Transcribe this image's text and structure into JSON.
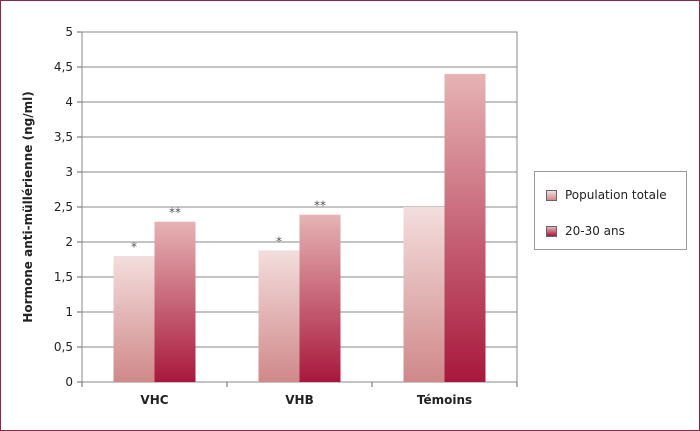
{
  "chart_data": {
    "type": "bar",
    "categories": [
      "VHC",
      "VHB",
      "Témoins"
    ],
    "series": [
      {
        "name": "Population totale",
        "values": [
          1.8,
          1.88,
          2.5
        ],
        "annotations": [
          "*",
          "*",
          ""
        ],
        "color_top": "#f3dedd",
        "color_bottom": "#d08889"
      },
      {
        "name": "20-30 ans",
        "values": [
          2.29,
          2.39,
          4.4
        ],
        "annotations": [
          "**",
          "**",
          ""
        ],
        "color_top": "#e6b3b4",
        "color_bottom": "#a8183c"
      }
    ],
    "ylabel": "Hormone anti-müllérienne (ng/ml)",
    "xlabel": "",
    "ylim": [
      0,
      5
    ],
    "yticks": [
      "0",
      "0,5",
      "1",
      "1,5",
      "2",
      "2,5",
      "3",
      "3,5",
      "4",
      "4,5",
      "5"
    ],
    "grid": true,
    "legend_position": "right",
    "frame_color": "#8c2748"
  }
}
